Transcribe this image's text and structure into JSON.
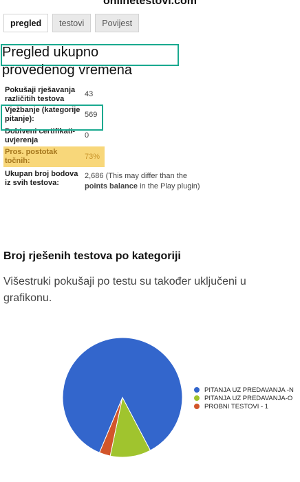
{
  "window": {
    "url": "onlinetestovi.com"
  },
  "tabs": [
    {
      "label": "pregled"
    },
    {
      "label": "testovi"
    },
    {
      "label": "Povijest"
    }
  ],
  "overview": {
    "title": "Pregled ukupno provedenog vremena",
    "stats": [
      {
        "label": "Pokušaji rješavanja različitih testova",
        "value": "43"
      },
      {
        "label": "Vježbanje (kategorije pitanje):",
        "value": "569"
      },
      {
        "label": "Dobiveni certifikati-uvjerenja",
        "value": "0"
      },
      {
        "label": "Pros. postotak točnih:",
        "value": "73%"
      },
      {
        "label": "Ukupan broj bodova iz svih testova:",
        "value_prefix": "2,686 (This may differ than the",
        "value_strong": "points balance",
        "value_suffix": "in the Play plugin)"
      }
    ]
  },
  "category_section": {
    "heading": "Broj rješenih testova po kategoriji",
    "description": "Višestruki pokušaji po testu su također uključeni u grafikonu."
  },
  "chart_data": {
    "type": "pie",
    "slices": [
      {
        "name": "PITANJA UZ PREDAVANJA -N",
        "value": 86,
        "color": "#3366cc"
      },
      {
        "name": "PITANJA UZ PREDAVANJA-O",
        "value": 11,
        "color": "#a0c42e"
      },
      {
        "name": "PROBNI TESTOVI - 1",
        "value": 3,
        "color": "#d2552a"
      }
    ],
    "legend_position": "right"
  }
}
